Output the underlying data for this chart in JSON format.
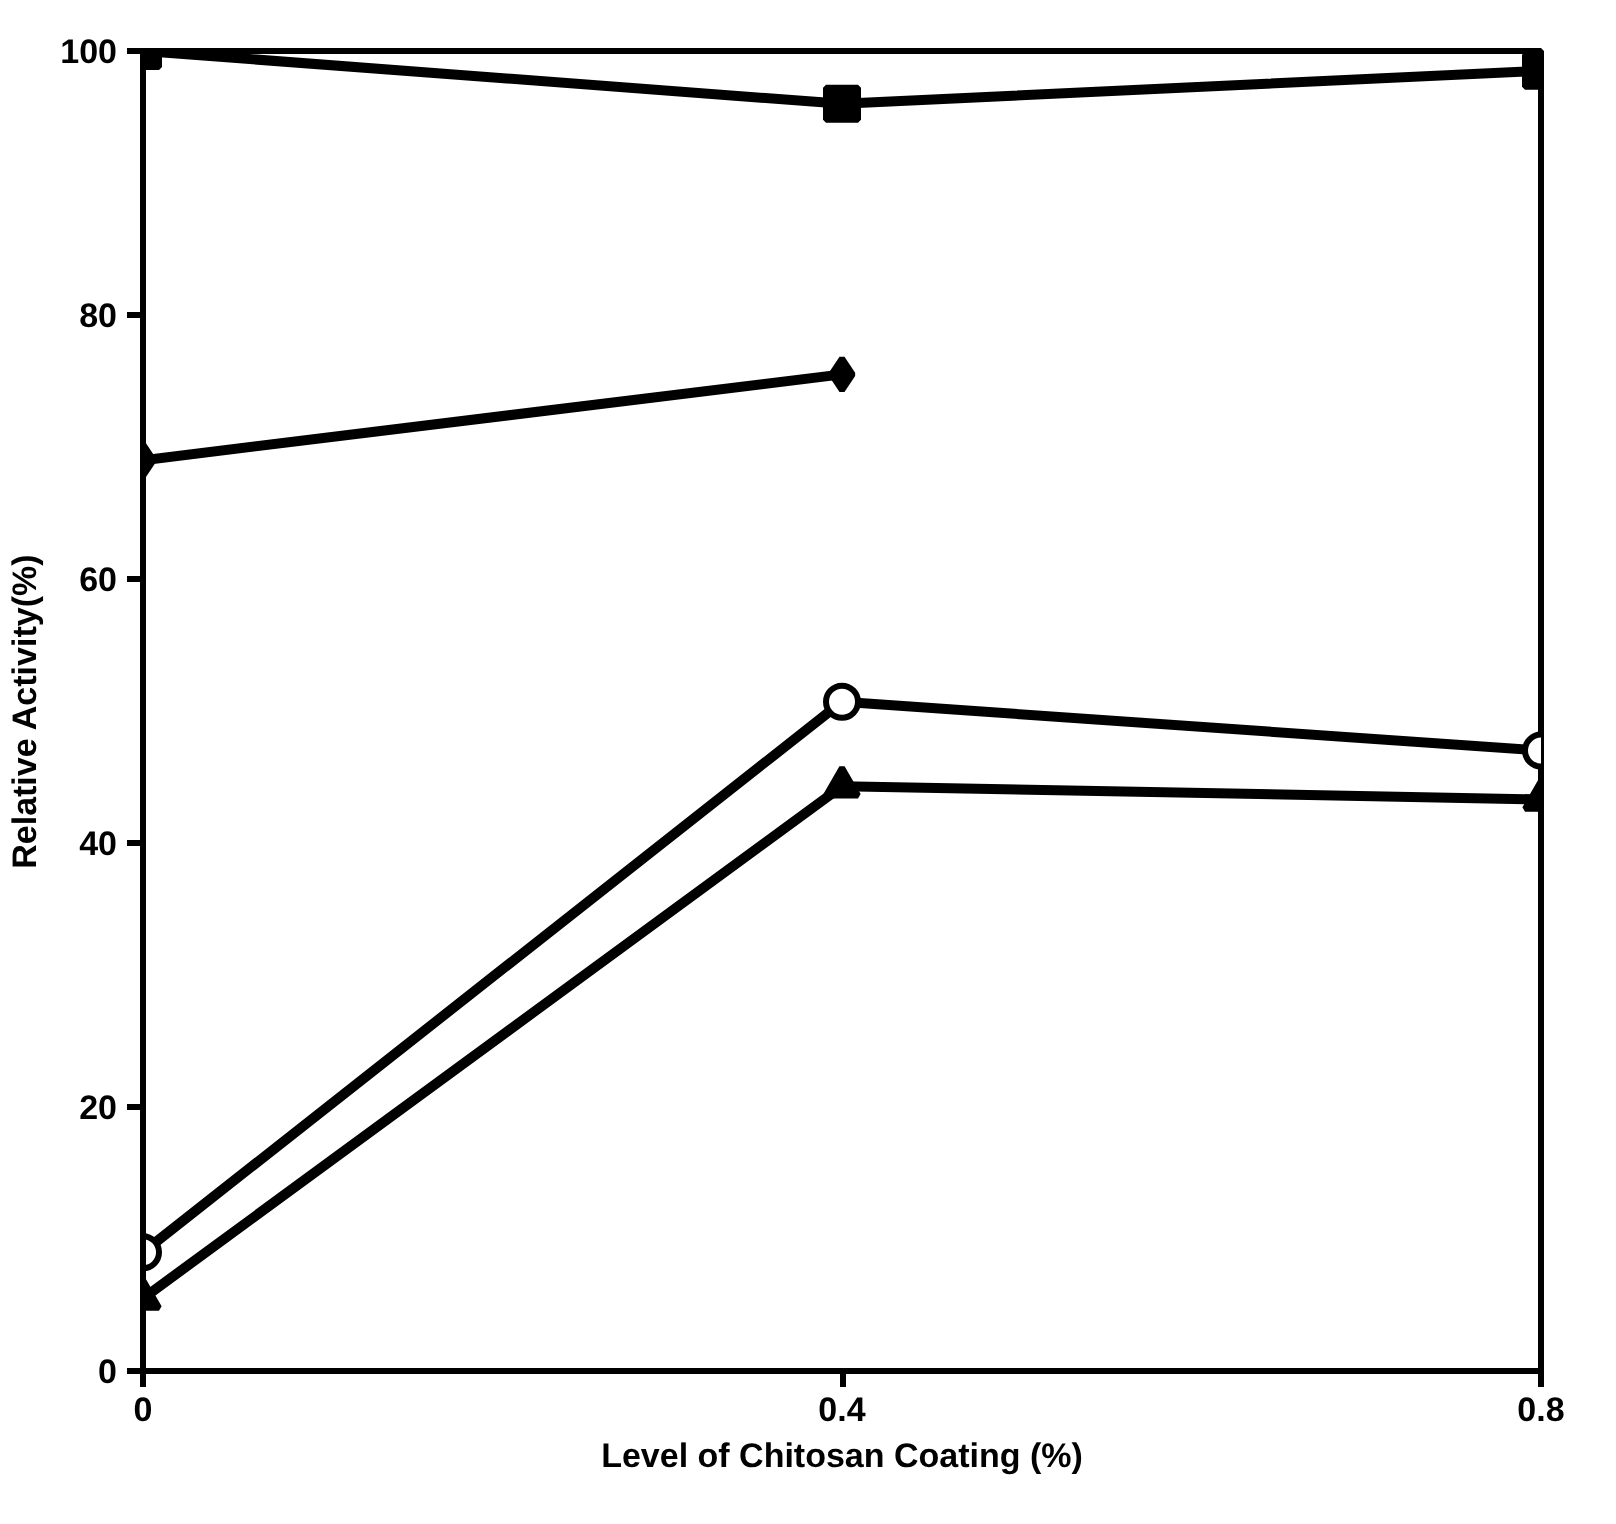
{
  "chart_data": {
    "type": "line",
    "xlabel": "Level of Chitosan Coating (%)",
    "ylabel": "Relative Activity(%)",
    "x": [
      0,
      0.4,
      0.8
    ],
    "xlim": [
      0,
      0.8
    ],
    "ylim": [
      0,
      100
    ],
    "xticks": [
      0,
      0.4,
      0.8
    ],
    "yticks": [
      0,
      20,
      40,
      60,
      80,
      100
    ],
    "grid": false,
    "line_style": "solid",
    "series": [
      {
        "color": "#000000",
        "marker": "square",
        "values": [
          100,
          96,
          98.5
        ]
      },
      {
        "color": "#000000",
        "marker": "diamond",
        "values": [
          69,
          75.5,
          null
        ]
      },
      {
        "color": "#000000",
        "marker": "open_circle",
        "values": [
          9,
          50.7,
          47
        ]
      },
      {
        "color": "#000000",
        "marker": "triangle",
        "values": [
          5.5,
          44.3,
          43.3
        ]
      }
    ]
  }
}
